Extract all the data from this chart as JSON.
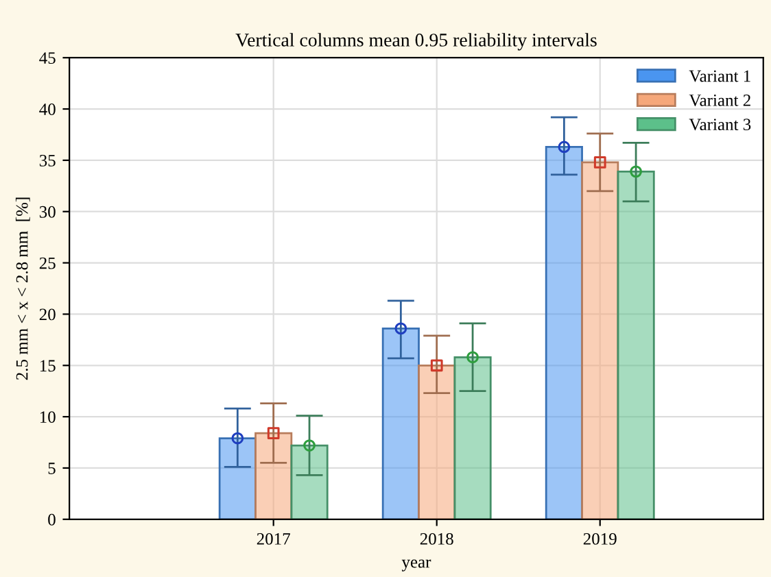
{
  "chart_data": {
    "type": "bar",
    "title": "Vertical columns mean 0.95 reliability intervals",
    "xlabel": "year",
    "ylabel": "2.5 mm < x < 2.8 mm  [%]",
    "categories": [
      "2017",
      "2018",
      "2019"
    ],
    "series": [
      {
        "name": "Variant 1",
        "color": "#4a95f0",
        "values": [
          7.9,
          18.6,
          36.3
        ],
        "errors": [
          [
            5.1,
            10.8
          ],
          [
            15.7,
            21.3
          ],
          [
            33.6,
            39.2
          ]
        ]
      },
      {
        "name": "Variant 2",
        "color": "#f5a77a",
        "values": [
          8.4,
          15.0,
          34.8
        ],
        "errors": [
          [
            5.5,
            11.3
          ],
          [
            12.3,
            17.9
          ],
          [
            32.0,
            37.6
          ]
        ]
      },
      {
        "name": "Variant 3",
        "color": "#5cc08a",
        "values": [
          7.2,
          15.8,
          33.9
        ],
        "errors": [
          [
            4.3,
            10.1
          ],
          [
            12.5,
            19.1
          ],
          [
            31.0,
            36.7
          ]
        ]
      },
      {
        "type": "scatter",
        "color": "#1f3fc0",
        "marker": "circle",
        "values": [
          7.9,
          18.6,
          36.3
        ]
      },
      {
        "type": "scatter",
        "color": "#d03a2a",
        "marker": "square",
        "values": [
          8.4,
          15.0,
          34.8
        ]
      },
      {
        "type": "scatter",
        "color": "#2e9e3e",
        "marker": "circle",
        "values": [
          7.2,
          15.8,
          33.9
        ]
      }
    ],
    "ylim": [
      0,
      45
    ],
    "yticks": [
      0,
      5,
      10,
      15,
      20,
      25,
      30,
      35,
      40,
      45
    ],
    "grid": true,
    "legend": "top right"
  }
}
